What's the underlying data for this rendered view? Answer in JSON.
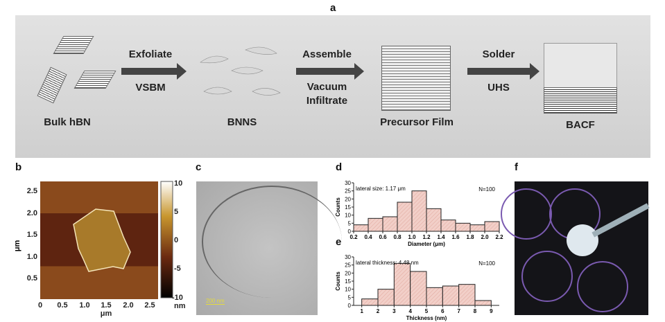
{
  "panel_a": {
    "label": "a",
    "steps": [
      "Bulk hBN",
      "BNNS",
      "Precursor Film",
      "BACF"
    ],
    "arrows": [
      {
        "top": "Exfoliate",
        "bottom": "VSBM"
      },
      {
        "top": "Assemble",
        "bottom": "Vacuum Infiltrate"
      },
      {
        "top": "Solder",
        "bottom": "UHS"
      }
    ]
  },
  "panel_b": {
    "label": "b",
    "ylabel": "μm",
    "xlabel": "μm",
    "yticks": [
      "2.5",
      "2.0",
      "1.5",
      "1.0",
      "0.5"
    ],
    "xticks": [
      "0",
      "0.5",
      "1.0",
      "1.5",
      "2.0",
      "2.5"
    ],
    "colorbar_ticks": [
      "10",
      "5",
      "0",
      "-5",
      "-10"
    ],
    "colorbar_unit": "nm"
  },
  "panel_c": {
    "label": "c",
    "scale_bar": "200 nm"
  },
  "panel_f": {
    "label": "f"
  },
  "chart_data": [
    {
      "label": "d",
      "type": "bar",
      "title": "",
      "annotation": "lateral size: 1.17 μm",
      "n_label": "N=100",
      "xlabel": "Diameter (μm)",
      "ylabel": "Counts",
      "bin_edges": [
        0.2,
        0.4,
        0.6,
        0.8,
        1.0,
        1.2,
        1.4,
        1.6,
        1.8,
        2.0,
        2.2
      ],
      "values": [
        4,
        8,
        9,
        18,
        25,
        14,
        7,
        5,
        4,
        6
      ],
      "xticks": [
        "0.2",
        "0.4",
        "0.6",
        "0.8",
        "1.0",
        "1.2",
        "1.4",
        "1.6",
        "1.8",
        "2.0",
        "2.2"
      ],
      "yticks": [
        "0",
        "5",
        "10",
        "15",
        "20",
        "25",
        "30"
      ],
      "xlim": [
        0.2,
        2.2
      ],
      "ylim": [
        0,
        30
      ]
    },
    {
      "label": "e",
      "type": "bar",
      "title": "",
      "annotation": "lateral thickness: 4.48 nm",
      "n_label": "N=100",
      "xlabel": "Thickness (nm)",
      "ylabel": "Counts",
      "bin_edges": [
        1,
        2,
        3,
        4,
        5,
        6,
        7,
        8,
        9
      ],
      "values": [
        4,
        10,
        26,
        21,
        11,
        12,
        13,
        3
      ],
      "xticks": [
        "1",
        "2",
        "3",
        "4",
        "5",
        "6",
        "7",
        "8",
        "9"
      ],
      "yticks": [
        "0",
        "5",
        "10",
        "15",
        "20",
        "25",
        "30"
      ],
      "xlim": [
        0.5,
        9.5
      ],
      "ylim": [
        0,
        30
      ]
    }
  ]
}
